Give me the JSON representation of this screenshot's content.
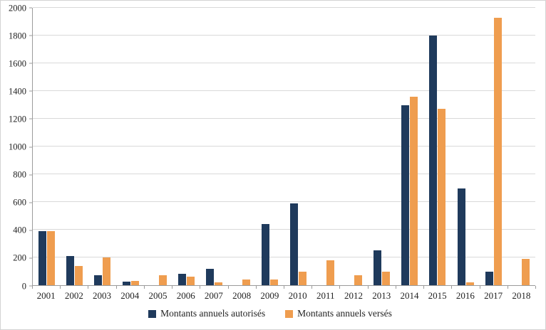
{
  "chart_data": {
    "type": "bar",
    "title": "",
    "categories": [
      "2001",
      "2002",
      "2003",
      "2004",
      "2005",
      "2006",
      "2007",
      "2008",
      "2009",
      "2010",
      "2011",
      "2012",
      "2013",
      "2014",
      "2015",
      "2016",
      "2017",
      "2018"
    ],
    "series": [
      {
        "key": "autorises",
        "name": "Montants annuels autorisés",
        "color": "#1f3a5c",
        "values": [
          390,
          210,
          70,
          25,
          0,
          80,
          120,
          0,
          440,
          590,
          0,
          0,
          250,
          1300,
          1800,
          700,
          100,
          0
        ]
      },
      {
        "key": "verses",
        "name": "Montants annuels versés",
        "color": "#ef9d4f",
        "values": [
          390,
          140,
          200,
          30,
          70,
          60,
          20,
          40,
          40,
          100,
          180,
          70,
          100,
          1360,
          1270,
          20,
          1930,
          190
        ]
      }
    ],
    "xlabel": "",
    "ylabel": "",
    "ylim": [
      0,
      2000
    ],
    "ytick": 200,
    "grid": "horizontal",
    "legend_position": "bottom",
    "colors": {
      "gridline": "#d9d9d9",
      "axis": "#9b9b9b",
      "text": "#222222",
      "background": "#ffffff"
    }
  }
}
